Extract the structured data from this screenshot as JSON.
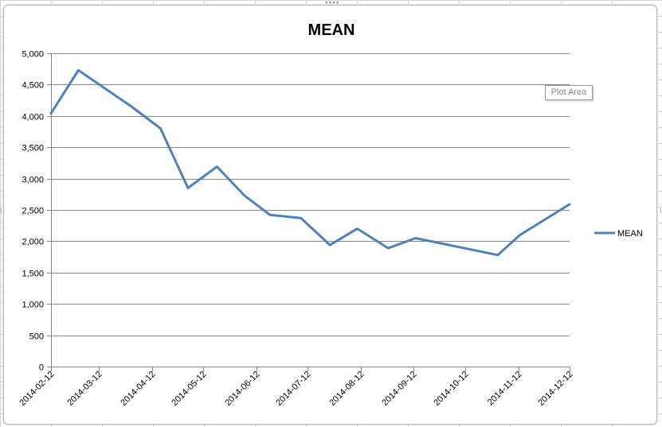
{
  "chart_data": {
    "type": "line",
    "title": "MEAN",
    "xlabel": "",
    "ylabel": "",
    "ylim": [
      0,
      5000
    ],
    "y_ticks": [
      0,
      500,
      1000,
      1500,
      2000,
      2500,
      3000,
      3500,
      4000,
      4500,
      5000
    ],
    "y_tick_labels": [
      "0",
      "500",
      "1,000",
      "1,500",
      "2,000",
      "2,500",
      "3,000",
      "3,500",
      "4,000",
      "4,500",
      "5,000"
    ],
    "x_ticks": [
      "2014-02-12",
      "2014-03-12",
      "2014-04-12",
      "2014-05-12",
      "2014-06-12",
      "2014-07-12",
      "2014-08-12",
      "2014-09-12",
      "2014-10-12",
      "2014-11-12",
      "2014-12-12"
    ],
    "xlim": [
      "2014-02-12",
      "2014-12-12"
    ],
    "grid": true,
    "legend_position": "right",
    "series": [
      {
        "name": "MEAN",
        "color": "#4f81bd",
        "points": [
          {
            "x": "2014-02-12",
            "y": 4040
          },
          {
            "x": "2014-02-28",
            "y": 4730
          },
          {
            "x": "2014-03-31",
            "y": 4150
          },
          {
            "x": "2014-04-17",
            "y": 3800
          },
          {
            "x": "2014-05-03",
            "y": 2850
          },
          {
            "x": "2014-05-20",
            "y": 3190
          },
          {
            "x": "2014-06-05",
            "y": 2730
          },
          {
            "x": "2014-06-20",
            "y": 2420
          },
          {
            "x": "2014-07-08",
            "y": 2370
          },
          {
            "x": "2014-07-25",
            "y": 1940
          },
          {
            "x": "2014-08-10",
            "y": 2200
          },
          {
            "x": "2014-08-28",
            "y": 1890
          },
          {
            "x": "2014-09-13",
            "y": 2050
          },
          {
            "x": "2014-10-31",
            "y": 1780
          },
          {
            "x": "2014-11-13",
            "y": 2100
          },
          {
            "x": "2014-12-12",
            "y": 2590
          }
        ]
      }
    ]
  },
  "ui": {
    "plot_area_tooltip": "Plot Area",
    "handle_top": "∙∙∙∙",
    "handle_side": "⁞"
  }
}
